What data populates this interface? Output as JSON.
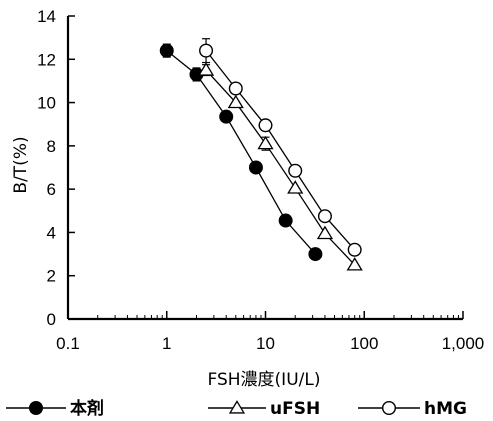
{
  "chart_data": {
    "type": "scatter",
    "title": "",
    "xlabel": "FSH濃度(IU/L)",
    "ylabel": "B/T(%)",
    "xscale": "log",
    "xlim": [
      0.1,
      1000
    ],
    "ylim": [
      0,
      14
    ],
    "x_ticks": [
      0.1,
      1,
      10,
      100,
      1000
    ],
    "x_tick_labels": [
      "0.1",
      "1",
      "10",
      "100",
      "1,000"
    ],
    "y_ticks": [
      0,
      2,
      4,
      6,
      8,
      10,
      12,
      14
    ],
    "y_tick_labels": [
      "0",
      "2",
      "4",
      "6",
      "8",
      "10",
      "12",
      "14"
    ],
    "grid": false,
    "legend_position": "bottom",
    "series": [
      {
        "name": "本剤",
        "marker": "filled-circle",
        "color": "#000000",
        "x": [
          1,
          2,
          4,
          8,
          16,
          32
        ],
        "y": [
          12.4,
          11.3,
          9.35,
          7.0,
          4.55,
          3.0
        ],
        "err": [
          0.3,
          0.3,
          0,
          0,
          0,
          0
        ]
      },
      {
        "name": "uFSH",
        "marker": "open-triangle",
        "color": "#000000",
        "x": [
          2.5,
          5,
          10,
          20,
          40,
          80
        ],
        "y": [
          11.5,
          10.0,
          8.1,
          6.05,
          3.95,
          2.5
        ],
        "err": [
          0.25,
          0,
          0.3,
          0,
          0,
          0
        ]
      },
      {
        "name": "hMG",
        "marker": "open-circle",
        "color": "#000000",
        "x": [
          2.5,
          5,
          10,
          20,
          40,
          80
        ],
        "y": [
          12.4,
          10.65,
          8.95,
          6.85,
          4.75,
          3.2
        ],
        "err": [
          0.55,
          0,
          0,
          0,
          0,
          0
        ]
      }
    ]
  }
}
